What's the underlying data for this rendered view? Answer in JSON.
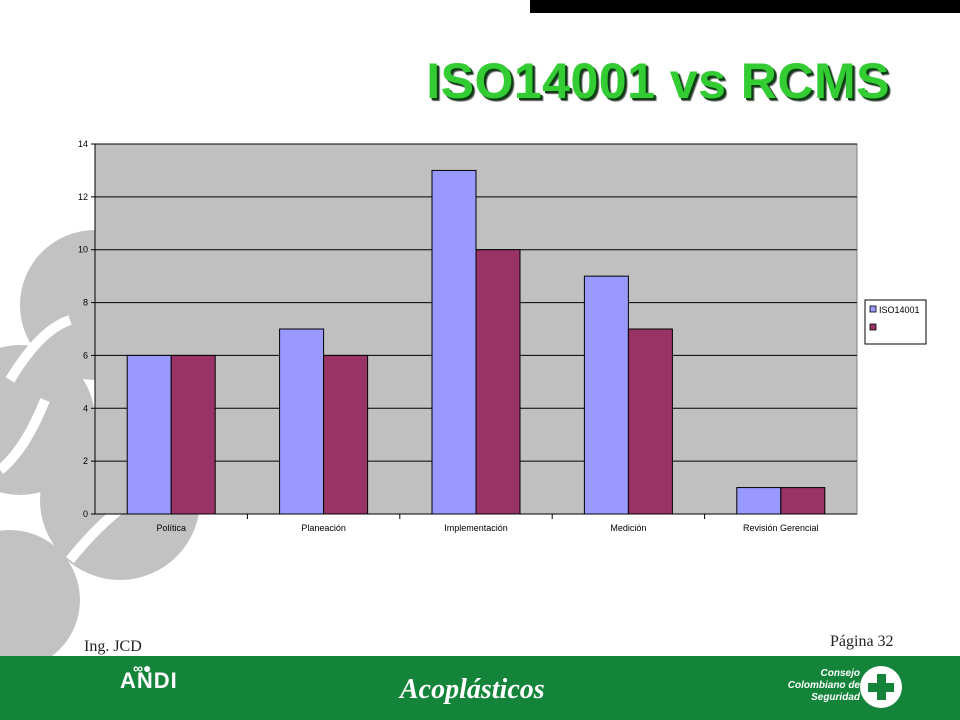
{
  "slide": {
    "title": "ISO14001 vs RCMS",
    "author": "Ing. JCD",
    "page_label": "Página 32"
  },
  "footer": {
    "logo_left": "ANDI",
    "logo_center": "Acoplásticos",
    "logo_right_lines": [
      "Consejo",
      "Colombiano de",
      "Seguridad"
    ]
  },
  "chart_data": {
    "type": "bar",
    "categories": [
      "Política",
      "Planeación",
      "Implementación",
      "Medición",
      "Revisión Gerencial"
    ],
    "series": [
      {
        "name": "ISO14001",
        "values": [
          6,
          7,
          13,
          9,
          1
        ],
        "color": "#9999ff"
      },
      {
        "values": [
          6,
          6,
          10,
          7,
          1
        ],
        "color": "#993366"
      }
    ],
    "ylim": [
      0,
      14
    ],
    "yticks": [
      0,
      2,
      4,
      6,
      8,
      10,
      12,
      14
    ],
    "grid": true,
    "plot_background": "#c0c0c0",
    "legend_position": "right"
  },
  "colors": {
    "title": "#33cc33",
    "footer": "#14843a"
  }
}
